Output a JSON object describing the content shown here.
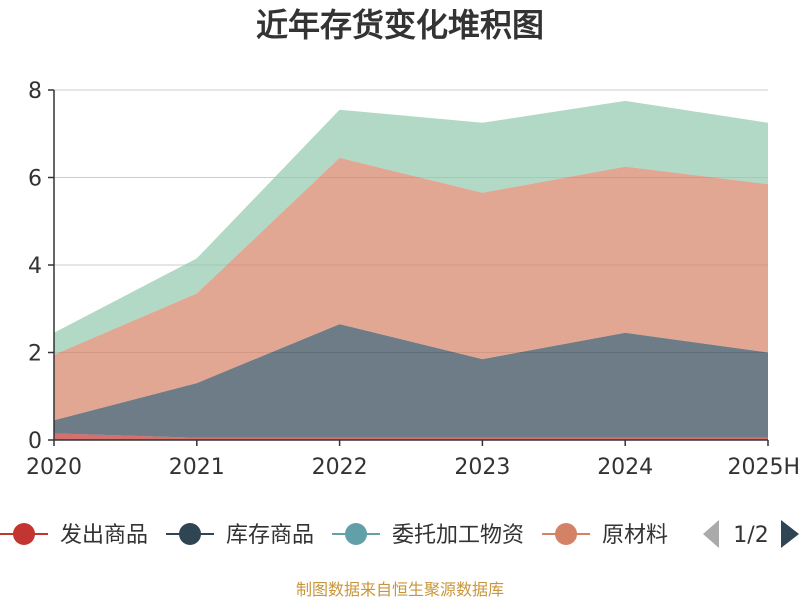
{
  "chart_data": {
    "type": "area",
    "title": "近年存货变化堆积图",
    "xlabel": "",
    "ylabel": "",
    "categories": [
      "2020",
      "2021",
      "2022",
      "2023",
      "2024",
      "2025H"
    ],
    "ylim": [
      0,
      8
    ],
    "yticks": [
      "0",
      "2",
      "4",
      "6",
      "8"
    ],
    "stacked": true,
    "grid": true,
    "legend_position": "bottom",
    "series": [
      {
        "name": "发出商品",
        "color": "#c23531",
        "values": [
          0.15,
          0.05,
          0.05,
          0.05,
          0.05,
          0.05
        ]
      },
      {
        "name": "库存商品",
        "color": "#2f4554",
        "values": [
          0.3,
          1.25,
          2.6,
          1.8,
          2.4,
          1.95
        ]
      },
      {
        "name": "委托加工物资",
        "color": "#61a0a8",
        "values": [
          0.0,
          0.0,
          0.0,
          0.0,
          0.0,
          0.0
        ]
      },
      {
        "name": "原材料",
        "color": "#d48265",
        "values": [
          1.5,
          2.05,
          3.8,
          3.8,
          3.8,
          3.85
        ]
      },
      {
        "name": "",
        "color": "#91c7ae",
        "values": [
          0.5,
          0.8,
          1.1,
          1.6,
          1.5,
          1.4
        ]
      }
    ],
    "legend": {
      "items": [
        "发出商品",
        "库存商品",
        "委托加工物资",
        "原材料"
      ],
      "page": "1/2"
    },
    "source": "制图数据来自恒生聚源数据库"
  }
}
